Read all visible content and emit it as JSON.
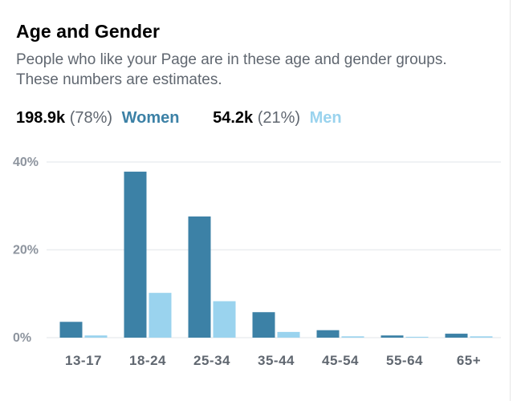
{
  "card": {
    "title": "Age and Gender",
    "subtitle": "People who like your Page are in these age and gender groups. These numbers are estimates."
  },
  "summary": {
    "women": {
      "count": "198.9k",
      "percent": "(78%)",
      "label": "Women"
    },
    "men": {
      "count": "54.2k",
      "percent": "(21%)",
      "label": "Men"
    }
  },
  "colors": {
    "women": "#3c81a6",
    "men": "#9ad3ee",
    "grid": "#ebedf0"
  },
  "chart_data": {
    "type": "bar",
    "title": "",
    "xlabel": "",
    "ylabel": "",
    "categories": [
      "13-17",
      "18-24",
      "25-34",
      "35-44",
      "45-54",
      "55-64",
      "65+"
    ],
    "series": [
      {
        "name": "Women",
        "values": [
          3.6,
          37.8,
          27.6,
          5.8,
          1.7,
          0.5,
          0.9
        ]
      },
      {
        "name": "Men",
        "values": [
          0.5,
          10.2,
          8.3,
          1.3,
          0.3,
          0.2,
          0.3
        ]
      }
    ],
    "ylim": [
      0,
      40
    ],
    "yticks": [
      {
        "value": 0,
        "label": "0%"
      },
      {
        "value": 20,
        "label": "20%"
      },
      {
        "value": 40,
        "label": "40%"
      }
    ],
    "grid": true,
    "legend": "top"
  }
}
